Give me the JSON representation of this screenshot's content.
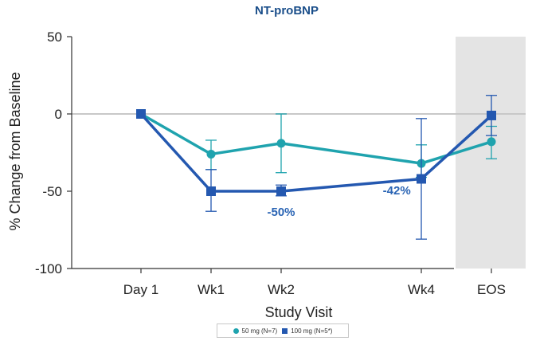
{
  "chart_data": {
    "type": "line",
    "title": "NT-proBNP",
    "xlabel": "Study  Visit",
    "ylabel": "% Change from Baseline",
    "categories": [
      "Day 1",
      "Wk1",
      "Wk2",
      "Wk4",
      "EOS"
    ],
    "x": [
      0,
      1,
      2,
      4,
      5
    ],
    "ylim": [
      -100,
      50
    ],
    "yticks": [
      50,
      0,
      -50,
      -100
    ],
    "reference_line_y": 0,
    "shaded_category": "EOS",
    "series": [
      {
        "name": "50 mg (N=7)",
        "color": "#1fa3ae",
        "marker": "circle",
        "values": [
          0,
          -26,
          -19,
          -32,
          -18
        ],
        "err_low": [
          0,
          -36,
          -38,
          -41,
          -29
        ],
        "err_high": [
          0,
          -17,
          0,
          -20,
          -8
        ]
      },
      {
        "name": "100 mg (N=5*)",
        "color": "#2458b0",
        "marker": "square",
        "values": [
          0,
          -50,
          -50,
          -42,
          -1
        ],
        "err_low": [
          0,
          -63,
          -53,
          -81,
          -14
        ],
        "err_high": [
          0,
          -36,
          -46,
          -3,
          12
        ]
      }
    ],
    "annotations": [
      {
        "text": "-50%",
        "x": 2,
        "y": -66,
        "color": "#2a64b4"
      },
      {
        "text": "-42%",
        "x": 3.65,
        "y": -52,
        "color": "#2a64b4"
      }
    ]
  }
}
